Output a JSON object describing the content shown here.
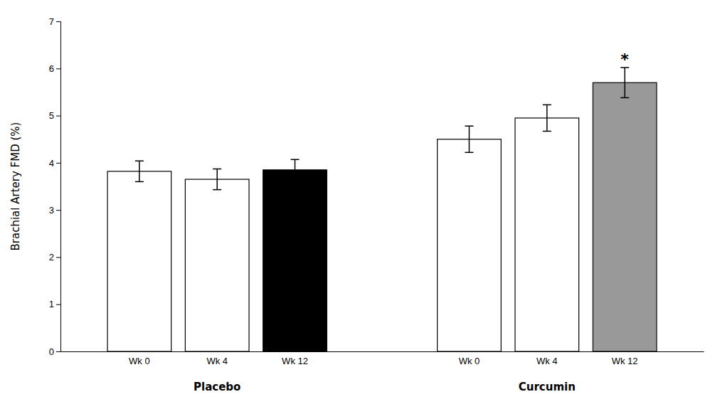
{
  "chart_data": {
    "type": "bar",
    "ylabel": "Brachial Artery FMD (%)",
    "groups": [
      {
        "name": "Placebo",
        "categories": [
          "Wk 0",
          "Wk 4",
          "Wk 12"
        ],
        "values": [
          3.82,
          3.65,
          3.85
        ],
        "errors": [
          0.22,
          0.22,
          0.22
        ],
        "colors": [
          "white",
          "white",
          "black"
        ],
        "annotations": [
          null,
          null,
          null
        ]
      },
      {
        "name": "Curcumin",
        "categories": [
          "Wk 0",
          "Wk 4",
          "Wk 12"
        ],
        "values": [
          4.5,
          4.95,
          5.7
        ],
        "errors": [
          0.28,
          0.28,
          0.32
        ],
        "colors": [
          "white",
          "white",
          "#999999"
        ],
        "annotations": [
          null,
          null,
          "*"
        ]
      }
    ],
    "ylim": [
      0,
      7
    ],
    "yticks": [
      0,
      1,
      2,
      3,
      4,
      5,
      6,
      7
    ],
    "grid": false
  }
}
